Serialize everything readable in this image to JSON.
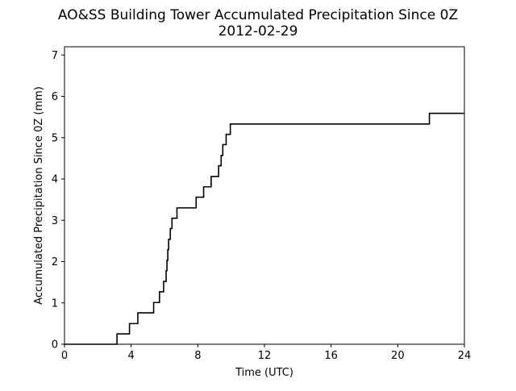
{
  "chart_data": {
    "type": "line",
    "title": "AO&SS Building Tower Accumulated Precipitation Since 0Z",
    "subtitle": "2012-02-29",
    "xlabel": "Time (UTC)",
    "ylabel": "Accumulated Precipitation Since 0Z (mm)",
    "xlim": [
      0,
      24
    ],
    "ylim": [
      0,
      7.2
    ],
    "xticks": [
      0,
      4,
      8,
      12,
      16,
      20,
      24
    ],
    "yticks": [
      0,
      1,
      2,
      3,
      4,
      5,
      6,
      7
    ],
    "grid": false,
    "step": true,
    "line_color": "#000000",
    "series": [
      {
        "x": [
          0,
          3.15,
          3.9,
          4.4,
          5.35,
          5.7,
          5.95,
          6.1,
          6.15,
          6.2,
          6.25,
          6.35,
          6.45,
          6.75,
          7.9,
          8.35,
          8.8,
          9.25,
          9.4,
          9.5,
          9.7,
          9.95,
          21.9,
          24
        ],
        "y": [
          0,
          0.25,
          0.5,
          0.76,
          1.01,
          1.27,
          1.52,
          1.78,
          2.03,
          2.29,
          2.54,
          2.8,
          3.05,
          3.3,
          3.56,
          3.81,
          4.06,
          4.32,
          4.57,
          4.83,
          5.08,
          5.33,
          5.59,
          5.59
        ]
      }
    ]
  }
}
